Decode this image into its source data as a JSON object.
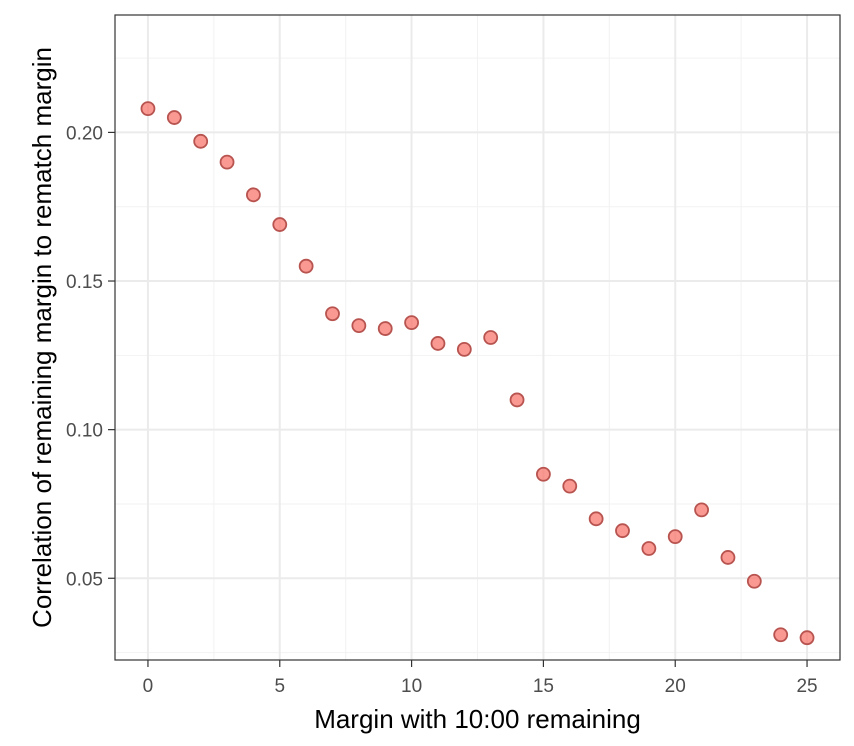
{
  "chart_data": {
    "type": "scatter",
    "title": "",
    "xlabel": "Margin with 10:00 remaining",
    "ylabel": "Correlation of remaining margin to rematch margin",
    "xlim": [
      -1.25,
      26.25
    ],
    "ylim": [
      0.0225,
      0.2395
    ],
    "x_ticks": [
      0,
      5,
      10,
      15,
      20,
      25
    ],
    "x_tick_labels": [
      "0",
      "5",
      "10",
      "15",
      "20",
      "25"
    ],
    "y_ticks": [
      0.05,
      0.1,
      0.15,
      0.2
    ],
    "y_tick_labels": [
      "0.05",
      "0.10",
      "0.15",
      "0.20"
    ],
    "grid": true,
    "legend": "none",
    "point_fill": "#f8766d",
    "point_stroke": "#b85450",
    "x": [
      0,
      1,
      2,
      3,
      4,
      5,
      6,
      7,
      8,
      9,
      10,
      11,
      12,
      13,
      14,
      15,
      16,
      17,
      18,
      19,
      20,
      21,
      22,
      23,
      24,
      25
    ],
    "y": [
      0.208,
      0.205,
      0.197,
      0.19,
      0.179,
      0.169,
      0.155,
      0.139,
      0.135,
      0.134,
      0.136,
      0.129,
      0.127,
      0.131,
      0.11,
      0.085,
      0.081,
      0.07,
      0.066,
      0.06,
      0.064,
      0.073,
      0.057,
      0.049,
      0.031,
      0.03
    ]
  }
}
